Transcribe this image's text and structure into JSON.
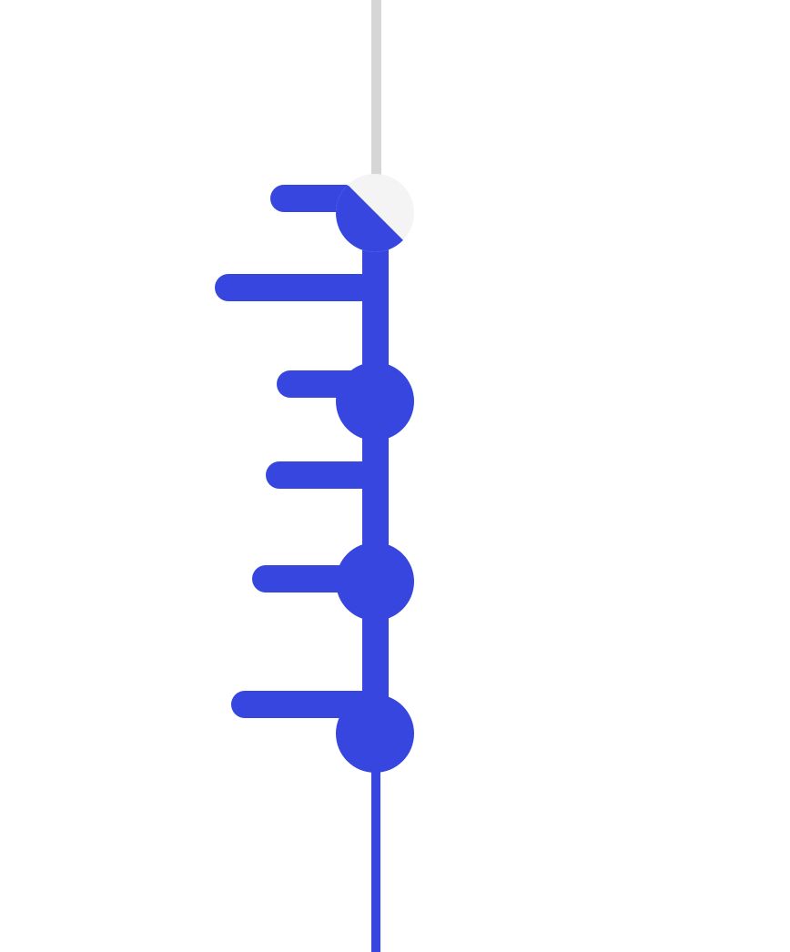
{
  "theme": {
    "accent": "#3646DE",
    "track_inactive": "#D6D6D6",
    "thumb_inactive": "#F4F4F4",
    "background": "#FFFFFF"
  },
  "slider": {
    "orientation": "vertical",
    "progress_fraction": 0.81,
    "progress_percent": 81,
    "thumb_icon": "half-filled-circle-icon",
    "tick_icon": "horizontal-bar-tick-icon",
    "handle_icon": "filled-circle-icon"
  }
}
